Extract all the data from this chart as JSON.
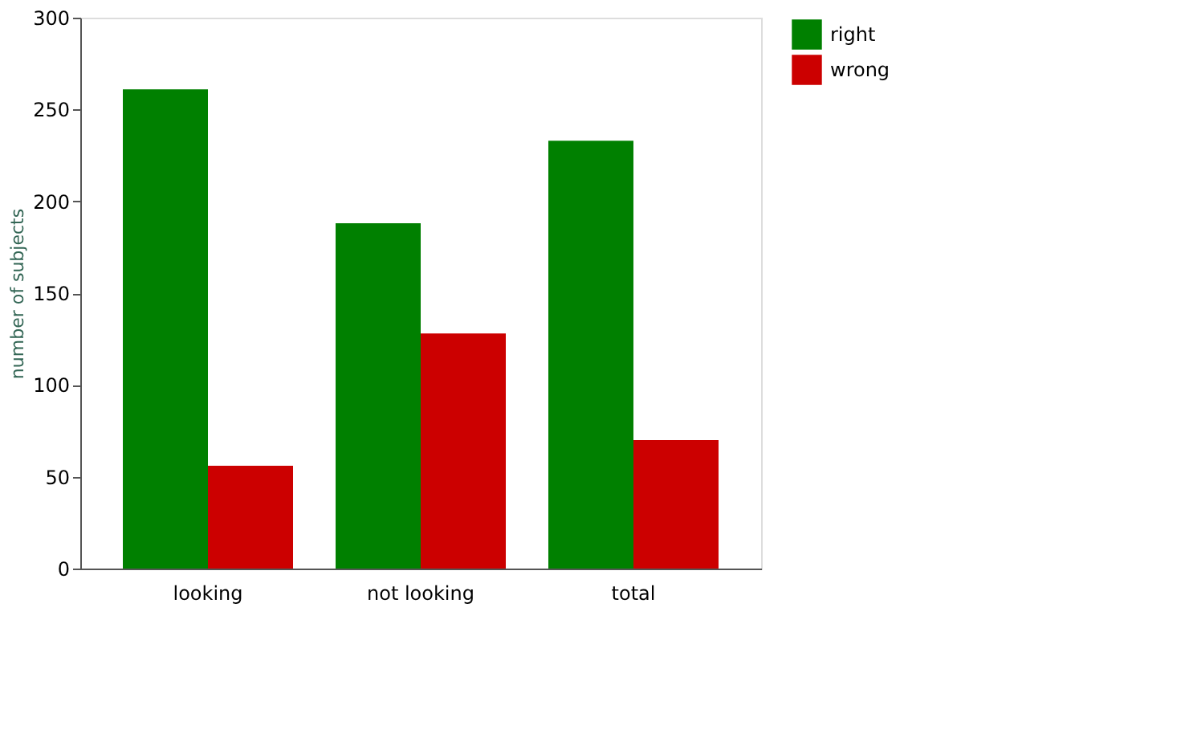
{
  "chart_data": {
    "type": "bar",
    "ylabel": "number of subjects",
    "categories": [
      "looking",
      "not looking",
      "total"
    ],
    "series": [
      {
        "name": "right",
        "color": "#008000",
        "values": [
          261,
          188,
          233
        ]
      },
      {
        "name": "wrong",
        "color": "#cc0000",
        "values": [
          56,
          128,
          70
        ]
      }
    ],
    "ylim": [
      0,
      300
    ],
    "yticks": [
      0,
      50,
      100,
      150,
      200,
      250,
      300
    ],
    "grid": false,
    "legend": "right"
  }
}
